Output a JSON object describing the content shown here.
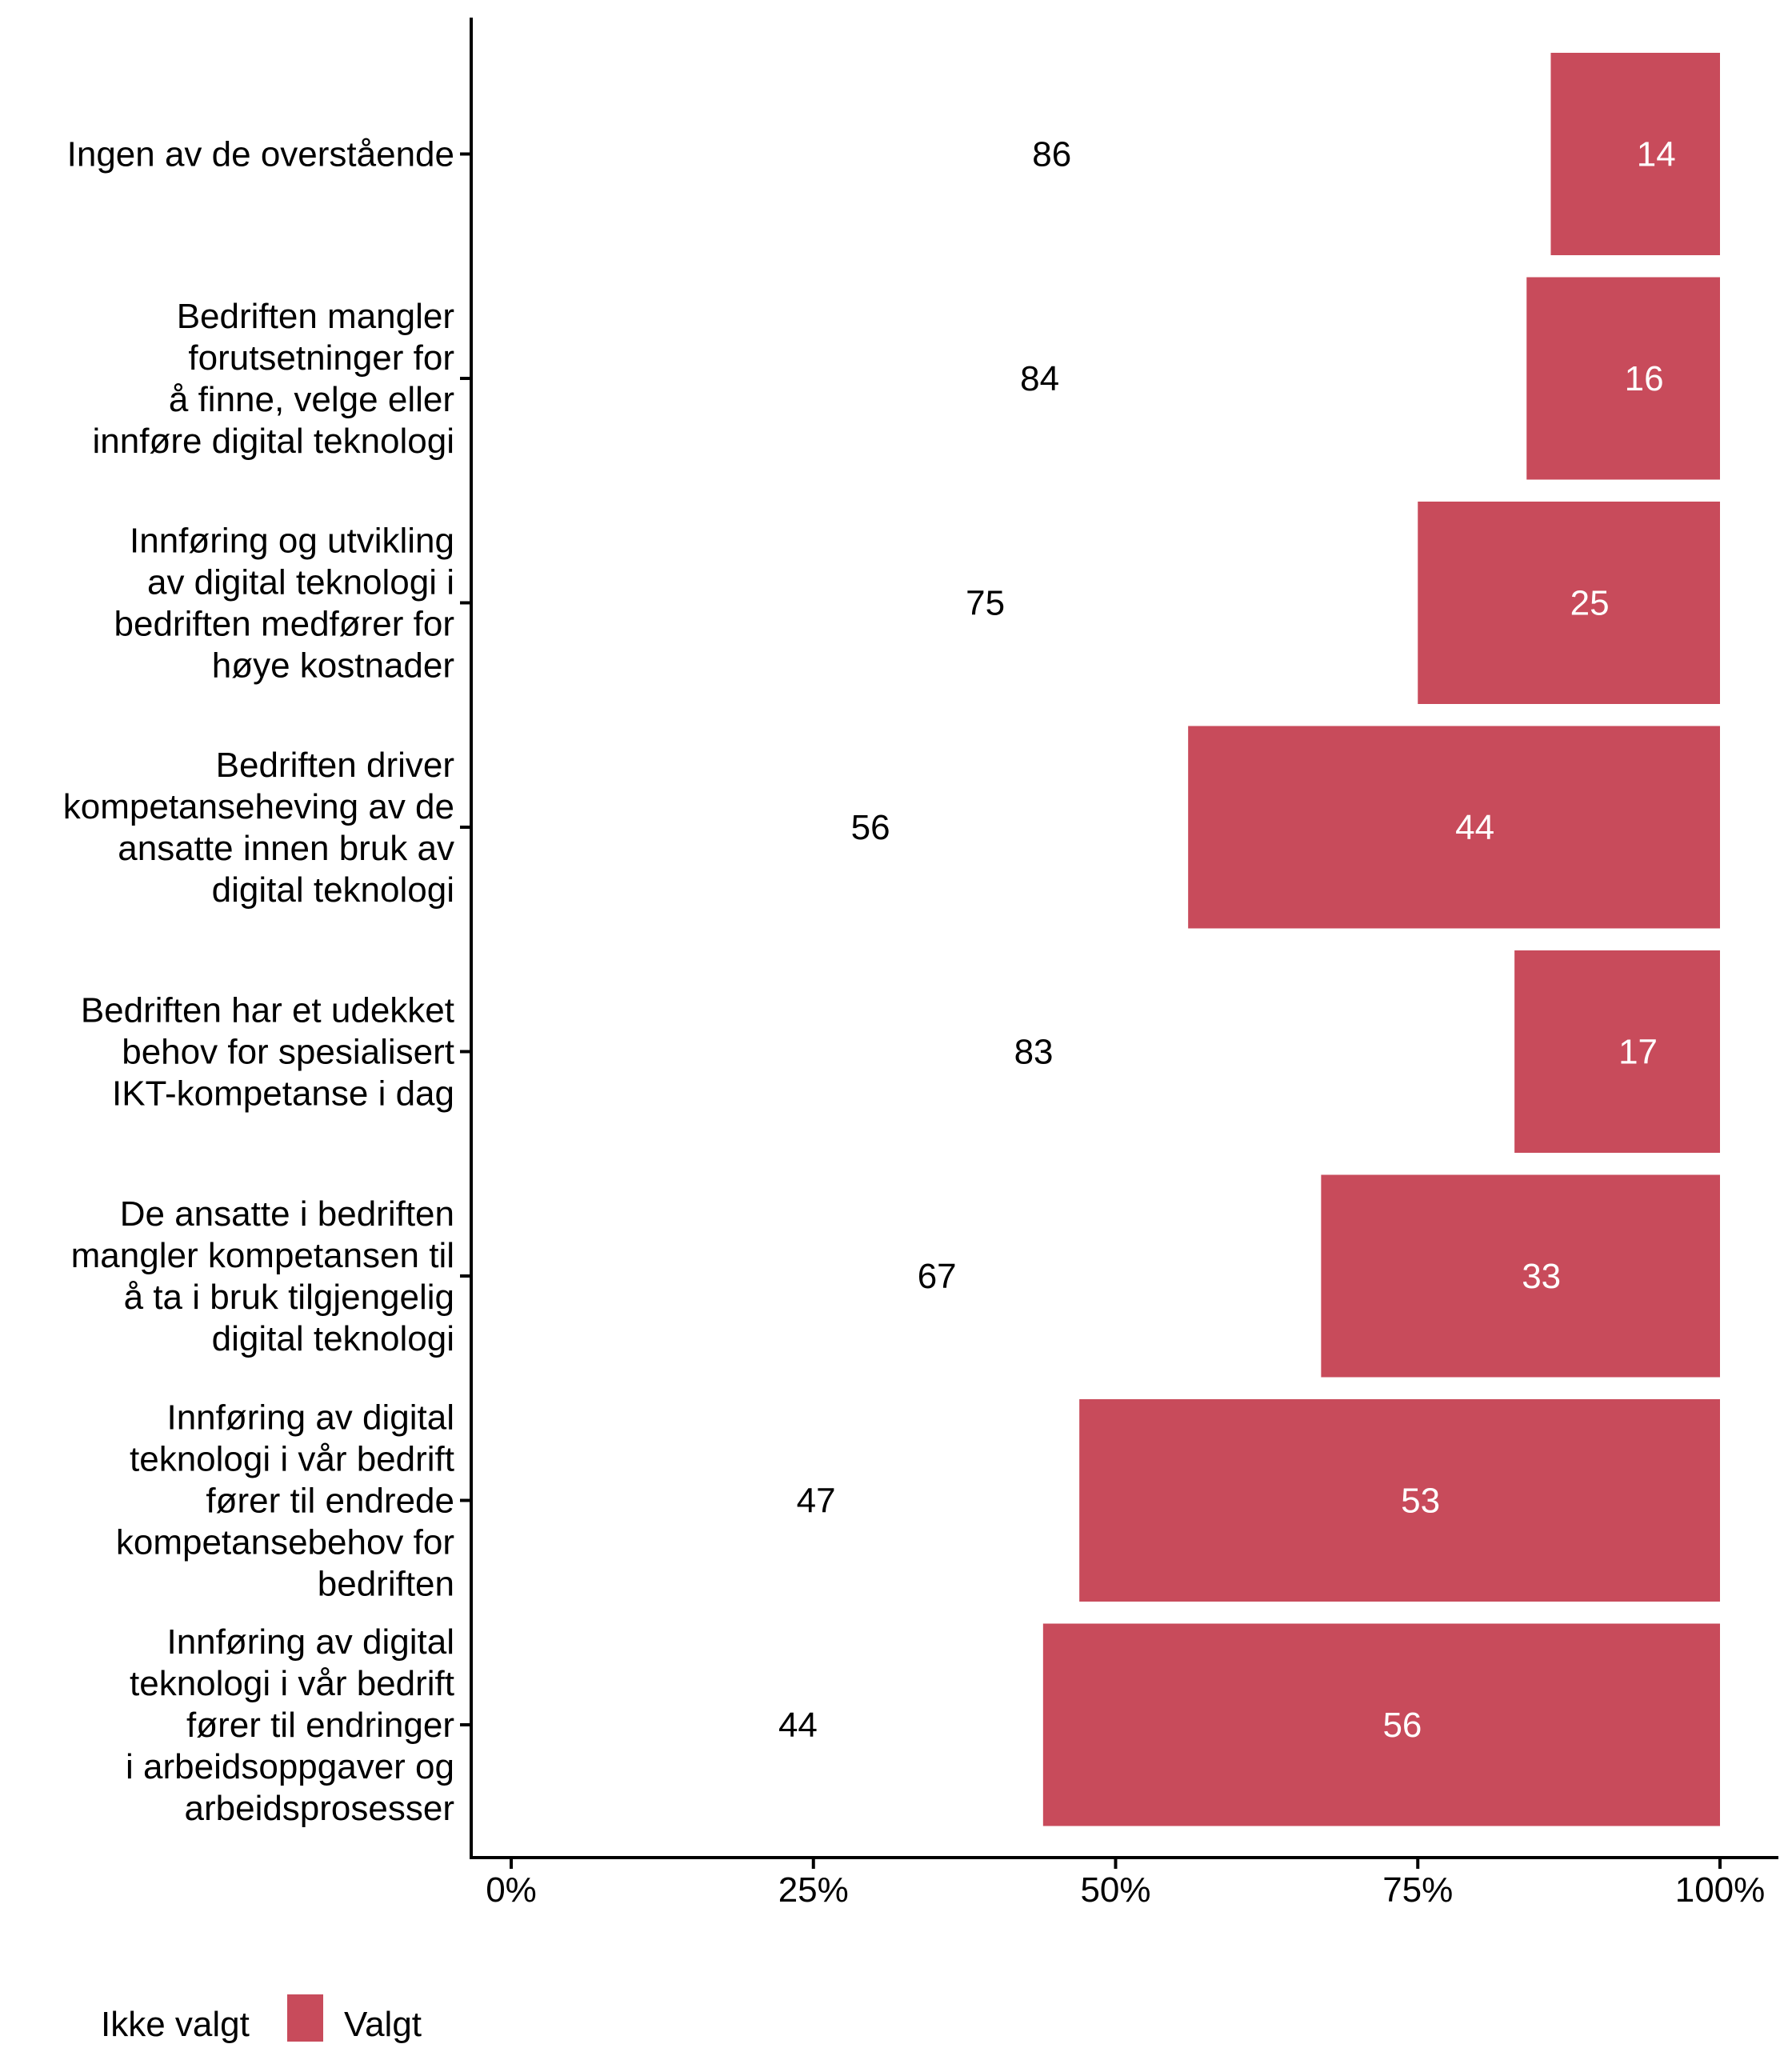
{
  "chart_data": {
    "type": "bar",
    "orientation": "horizontal",
    "stacked": true,
    "title": "",
    "xlabel": "",
    "ylabel": "",
    "xlim": [
      0,
      100
    ],
    "x_ticks": [
      "0%",
      "25%",
      "50%",
      "75%",
      "100%"
    ],
    "x_tick_values": [
      0,
      25,
      50,
      75,
      100
    ],
    "grid": false,
    "legend_position": "bottom-left",
    "categories": [
      [
        "Ingen av de overstående"
      ],
      [
        "Bedriften mangler",
        "forutsetninger for",
        "å finne, velge eller",
        "innføre digital teknologi"
      ],
      [
        "Innføring og utvikling",
        "av digital teknologi i",
        "bedriften medfører for",
        "høye kostnader"
      ],
      [
        "Bedriften driver",
        "kompetanseheving av de",
        "ansatte innen bruk av",
        "digital teknologi"
      ],
      [
        "Bedriften har et udekket",
        "behov for spesialisert",
        "IKT-kompetanse i dag"
      ],
      [
        "De ansatte i bedriften",
        "mangler kompetansen til",
        "å ta i bruk tilgjengelig",
        "digital teknologi"
      ],
      [
        "Innføring av digital",
        "teknologi i vår bedrift",
        "fører til endrede",
        "kompetansebehov for",
        "bedriften"
      ],
      [
        "Innføring av digital",
        "teknologi i vår bedrift",
        "fører til endringer",
        "i arbeidsoppgaver og",
        "arbeidsprosesser"
      ]
    ],
    "series": [
      {
        "name": "Ikke valgt",
        "color": "#ffffff",
        "label_color": "#000000",
        "values": [
          86,
          84,
          75,
          56,
          83,
          67,
          47,
          44
        ]
      },
      {
        "name": "Valgt",
        "color": "#c84b5b",
        "label_color": "#ffffff",
        "values": [
          14,
          16,
          25,
          44,
          17,
          33,
          53,
          56
        ]
      }
    ]
  },
  "legend": {
    "items": [
      {
        "label": "Ikke valgt",
        "color": "#ffffff"
      },
      {
        "label": "Valgt",
        "color": "#c84b5b"
      }
    ]
  }
}
